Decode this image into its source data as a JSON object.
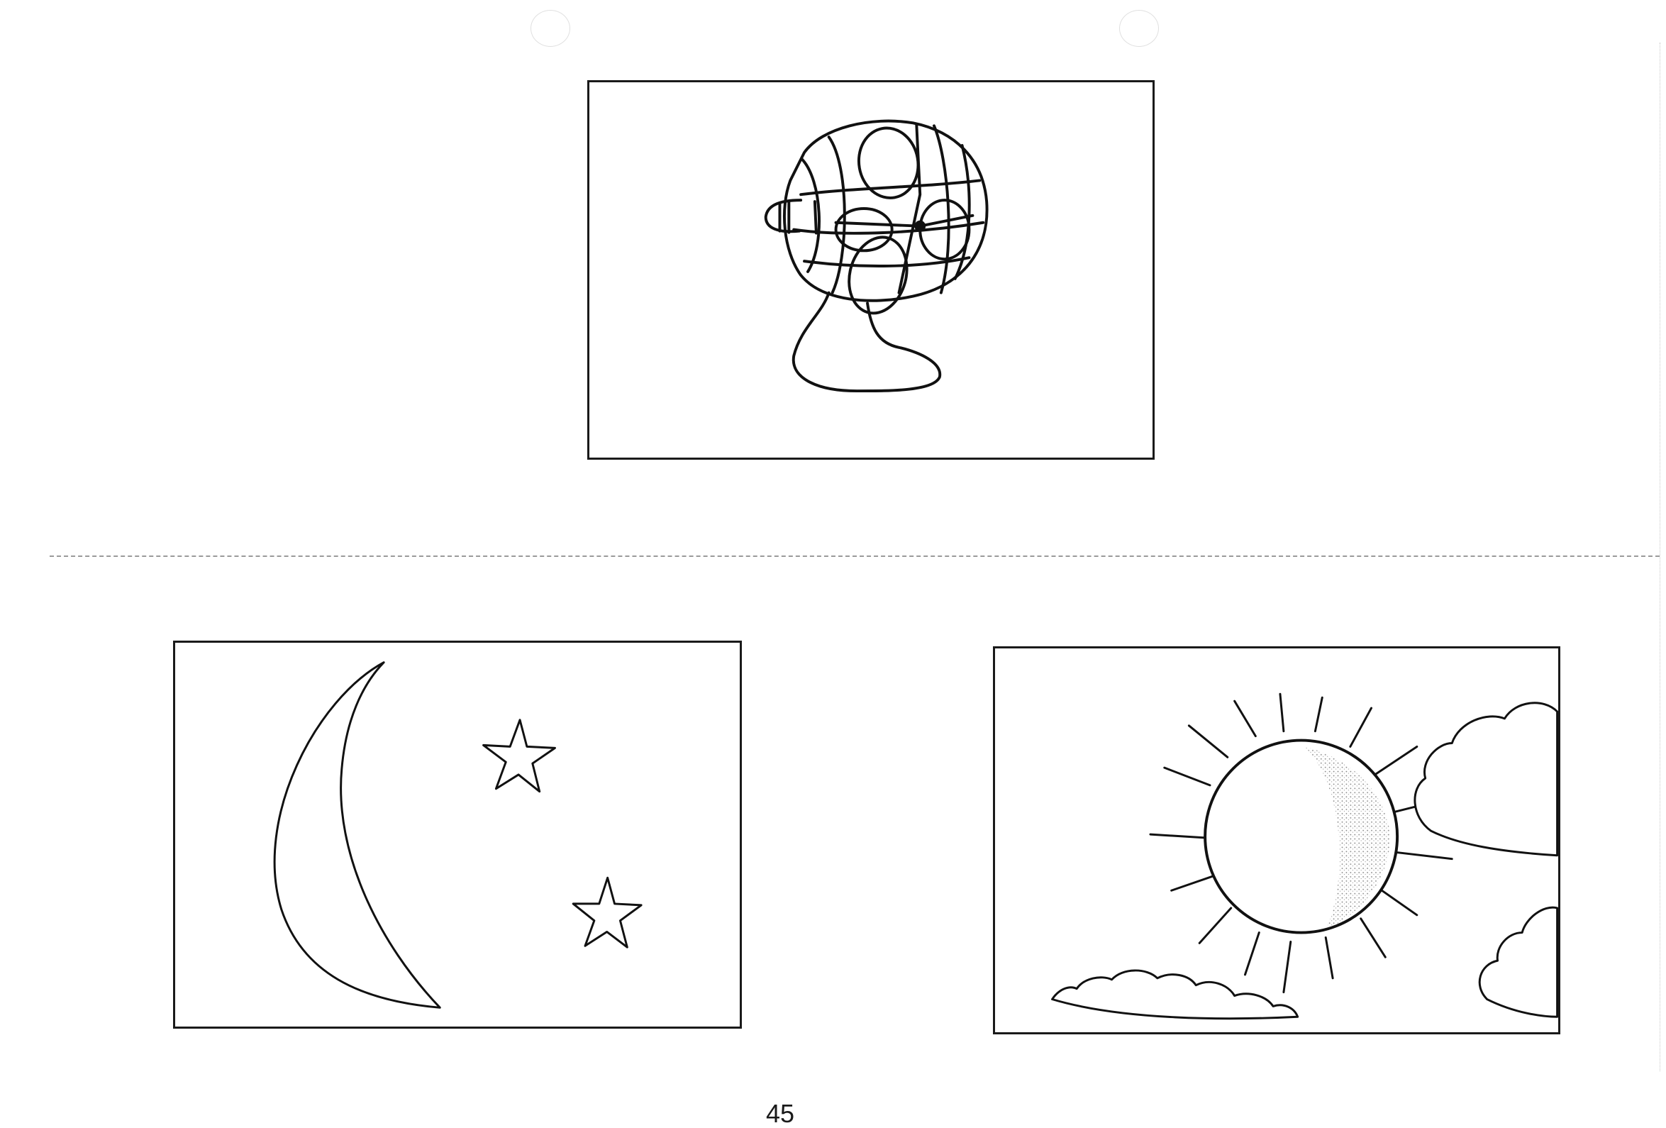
{
  "page": {
    "number": "45"
  },
  "pictures": [
    {
      "id": "fan",
      "icon": "electric-fan-icon"
    },
    {
      "id": "moon-and-stars",
      "icon": "crescent-moon-stars-icon"
    },
    {
      "id": "sun-and-clouds",
      "icon": "sun-clouds-icon"
    }
  ],
  "colors": {
    "ink": "#1a1a1a",
    "paper": "#ffffff",
    "cut_line": "#9a9a9a"
  }
}
